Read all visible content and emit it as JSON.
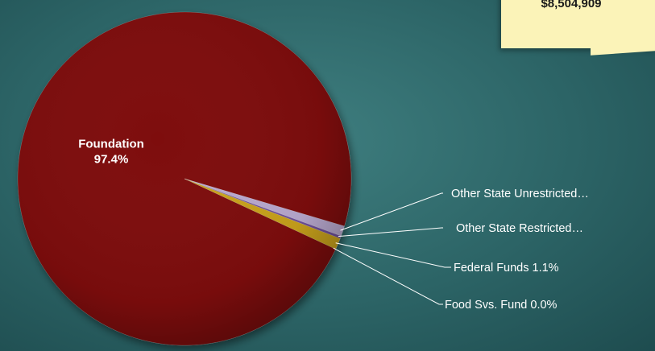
{
  "total_note": {
    "value": "$8,504,909"
  },
  "chart_data": {
    "type": "pie",
    "start_angle_deg": 25.0,
    "slices": [
      {
        "name": "Foundation",
        "value": 97.4,
        "display": "Foundation",
        "percent_label": "97.4%",
        "color": "#7e0f0d"
      },
      {
        "name": "Other State Unrestricted",
        "value": 1.0,
        "display": "Other State Unrestricted…",
        "color": "#b9a9cf"
      },
      {
        "name": "Other State Restricted",
        "value": 0.25,
        "display": "Other State Restricted…",
        "color": "#6f4f9a"
      },
      {
        "name": "Federal Funds",
        "value": 1.1,
        "display": "Federal Funds 1.1%",
        "color": "#c9a21c"
      },
      {
        "name": "Food Svs. Fund",
        "value": 0.0,
        "display": "Food Svs. Fund 0.0%",
        "color": "#e9d89a"
      }
    ]
  }
}
